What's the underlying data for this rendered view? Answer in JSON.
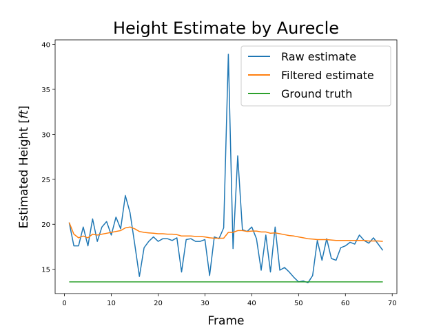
{
  "chart_data": {
    "type": "line",
    "title": "Height Estimate by Aurecle",
    "xlabel": "Frame",
    "ylabel_prefix": "Estimated Height [",
    "ylabel_unit": "ft",
    "ylabel_suffix": "]",
    "xlim": [
      -2,
      71
    ],
    "ylim": [
      12.3,
      40.5
    ],
    "xticks": [
      0,
      10,
      20,
      30,
      40,
      50,
      60,
      70
    ],
    "yticks": [
      15,
      20,
      25,
      30,
      35,
      40
    ],
    "grid": false,
    "legend_position": "top-right",
    "series": [
      {
        "name": "Raw estimate",
        "color": "#1f77b4",
        "x": [
          1,
          2,
          3,
          4,
          5,
          6,
          7,
          8,
          9,
          10,
          11,
          12,
          13,
          14,
          15,
          16,
          17,
          18,
          19,
          20,
          21,
          22,
          23,
          24,
          25,
          26,
          27,
          28,
          29,
          30,
          31,
          32,
          33,
          34,
          35,
          36,
          37,
          38,
          39,
          40,
          41,
          42,
          43,
          44,
          45,
          46,
          47,
          48,
          49,
          50,
          51,
          52,
          53,
          54,
          55,
          56,
          57,
          58,
          59,
          60,
          61,
          62,
          63,
          64,
          65,
          66,
          67,
          68
        ],
        "y": [
          20.2,
          17.6,
          17.6,
          19.7,
          17.6,
          20.6,
          18.1,
          19.7,
          20.3,
          18.8,
          20.8,
          19.5,
          23.2,
          21.3,
          17.8,
          14.2,
          17.4,
          18.1,
          18.6,
          18.1,
          18.4,
          18.4,
          18.2,
          18.5,
          14.7,
          18.3,
          18.4,
          18.1,
          18.1,
          18.3,
          14.3,
          18.6,
          18.4,
          19.6,
          38.9,
          17.3,
          27.6,
          19.4,
          19.2,
          19.7,
          18.4,
          14.9,
          18.8,
          14.7,
          19.7,
          14.9,
          15.2,
          14.7,
          14.1,
          13.6,
          13.7,
          13.5,
          14.3,
          18.2,
          16.0,
          18.4,
          16.2,
          16.0,
          17.4,
          17.6,
          18.0,
          17.8,
          18.8,
          18.2,
          17.9,
          18.5,
          17.8,
          17.1
        ]
      },
      {
        "name": "Filtered estimate",
        "color": "#ff7f0e",
        "x": [
          1,
          2,
          3,
          4,
          5,
          6,
          7,
          8,
          9,
          10,
          11,
          12,
          13,
          14,
          15,
          16,
          17,
          18,
          19,
          20,
          21,
          22,
          23,
          24,
          25,
          26,
          27,
          28,
          29,
          30,
          31,
          32,
          33,
          34,
          35,
          36,
          37,
          38,
          39,
          40,
          41,
          42,
          43,
          44,
          45,
          46,
          47,
          48,
          49,
          50,
          51,
          52,
          53,
          54,
          55,
          56,
          57,
          58,
          59,
          60,
          61,
          62,
          63,
          64,
          65,
          66,
          67,
          68
        ],
        "y": [
          20.2,
          18.9,
          18.5,
          18.7,
          18.5,
          18.9,
          18.8,
          18.9,
          19.0,
          19.1,
          19.2,
          19.3,
          19.6,
          19.7,
          19.5,
          19.2,
          19.1,
          19.05,
          19.0,
          18.95,
          18.95,
          18.9,
          18.9,
          18.85,
          18.7,
          18.7,
          18.7,
          18.65,
          18.65,
          18.6,
          18.5,
          18.45,
          18.45,
          18.45,
          19.1,
          19.1,
          19.3,
          19.3,
          19.2,
          19.25,
          19.25,
          19.15,
          19.15,
          19.0,
          19.05,
          18.95,
          18.85,
          18.75,
          18.7,
          18.6,
          18.5,
          18.4,
          18.35,
          18.3,
          18.3,
          18.3,
          18.25,
          18.2,
          18.2,
          18.2,
          18.2,
          18.2,
          18.2,
          18.2,
          18.15,
          18.15,
          18.15,
          18.1
        ]
      },
      {
        "name": "Ground truth",
        "color": "#2ca02c",
        "x": [
          1,
          68
        ],
        "y": [
          13.6,
          13.6
        ]
      }
    ]
  }
}
